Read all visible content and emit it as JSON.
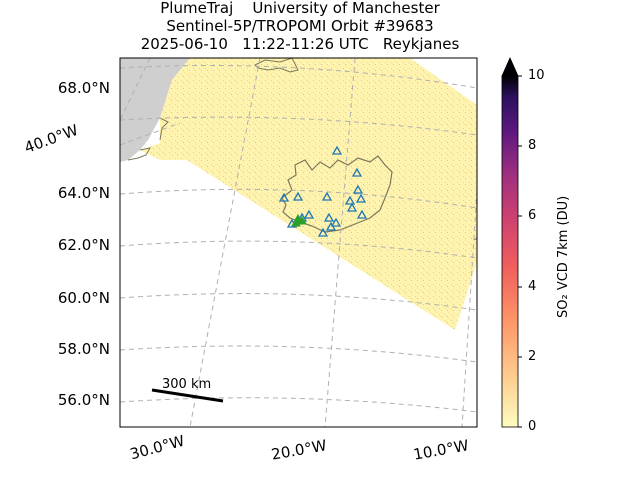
{
  "title": {
    "line1": "PlumeTraj    University of Manchester",
    "line2": "Sentinel-5P/TROPOMI Orbit #39683",
    "line3": "2025-06-10   11:22-11:26 UTC   Reykjanes"
  },
  "map": {
    "lat_labels": [
      "68.0°N",
      "64.0°N",
      "62.0°N",
      "60.0°N",
      "58.0°N",
      "56.0°N"
    ],
    "lon_left_label": "40.0°W",
    "lon_bottom_labels": [
      "30.0°W",
      "20.0°W",
      "10.0°W"
    ],
    "scale_bar_label": "300 km",
    "colors": {
      "land": "#cfcfcf",
      "swath": "#fff3b0",
      "coast": "#7a7a5a",
      "gridline": "#b0b0b0",
      "station_marker": "#1f77b4",
      "vent_marker": "#2ca02c"
    },
    "station_markers": "blue-triangle-icon",
    "vent_markers": "green-triangle-icon"
  },
  "colorbar": {
    "label": "SO₂ VCD 7km (DU)",
    "ticks": [
      "10",
      "8",
      "6",
      "4",
      "2",
      "0"
    ],
    "range": [
      0,
      10
    ],
    "extend": "max",
    "colormap": "magma_r"
  }
}
